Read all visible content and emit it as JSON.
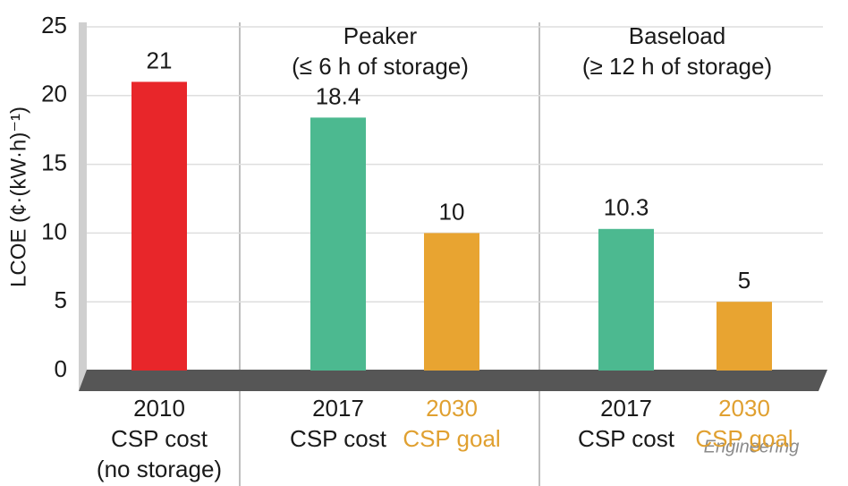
{
  "chart_data": {
    "type": "bar",
    "y_label": "LCOE (¢·(kW·h)⁻¹)",
    "categories": [
      [
        "2010",
        "CSP cost",
        "(no storage)"
      ],
      [
        "2017",
        "CSP cost"
      ],
      [
        "2030",
        "CSP goal"
      ],
      [
        "2017",
        "CSP cost"
      ],
      [
        "2030",
        "CSP goal"
      ]
    ],
    "category_colors": [
      "#1a1a1a",
      "#1a1a1a",
      "#e0a030",
      "#1a1a1a",
      "#e0a030"
    ],
    "values": [
      21,
      18.4,
      10,
      10.3,
      5
    ],
    "colors": [
      "#e8262a",
      "#4cb990",
      "#e8a431",
      "#4cb990",
      "#e8a431"
    ],
    "group_labels": [
      [
        "Peaker",
        "(≤ 6 h of storage)"
      ],
      [
        "Baseload",
        "(≥ 12 h of storage)"
      ]
    ],
    "ylim": [
      0,
      25
    ],
    "yticks": [
      0,
      5,
      10,
      15,
      20,
      25
    ],
    "grid": true,
    "watermark": "Engineering"
  }
}
